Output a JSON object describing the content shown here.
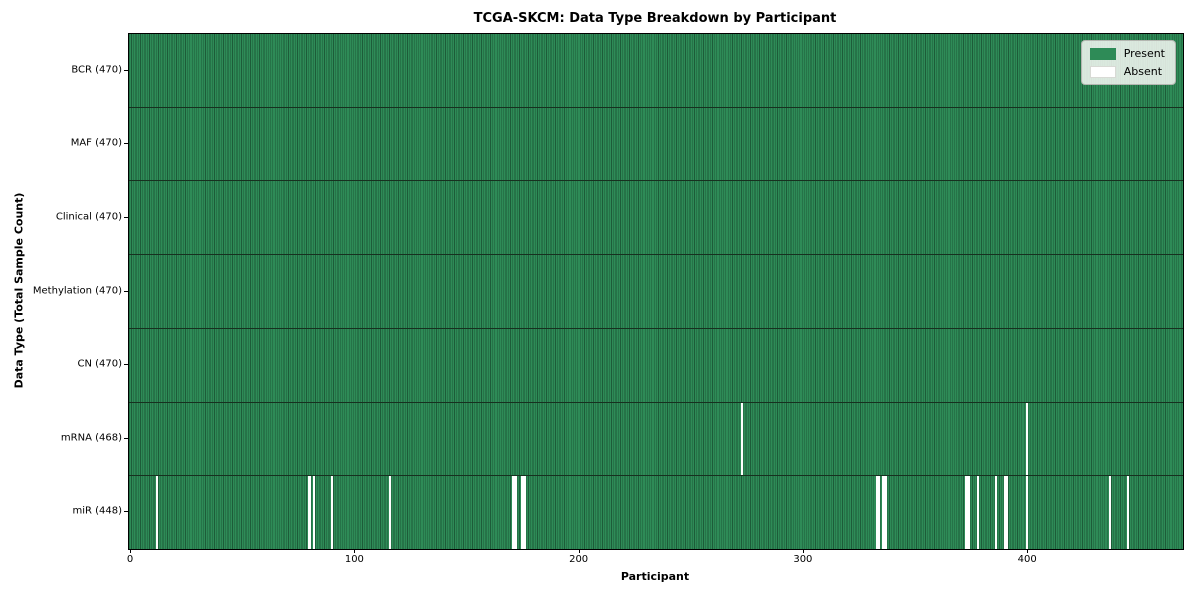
{
  "title": "TCGA-SKCM: Data Type Breakdown by Participant",
  "axes": {
    "xlabel": "Participant",
    "ylabel": "Data Type (Total Sample Count)"
  },
  "legend": {
    "present_label": "Present",
    "absent_label": "Absent"
  },
  "colors": {
    "present": "#2e8b57",
    "absent": "#ffffff",
    "cell_edge": "rgba(8, 34, 20, 0.45)",
    "row_divider": "#17301f",
    "spine": "#000000",
    "legend_bg": "rgba(248, 249, 246, 0.85)"
  },
  "chart_data": {
    "type": "heatmap",
    "title": "TCGA-SKCM: Data Type Breakdown by Participant",
    "xlabel": "Participant",
    "ylabel": "Data Type (Total Sample Count)",
    "n_participants": 470,
    "xlim": [
      -0.5,
      469.5
    ],
    "x_ticks": [
      0,
      100,
      200,
      300,
      400
    ],
    "grid": false,
    "legend_entries": [
      "Present",
      "Absent"
    ],
    "legend_position": "upper right",
    "value_encoding": {
      "present": "green cell",
      "absent": "white cell"
    },
    "rows": [
      {
        "label": "BCR (470)",
        "data_type": "BCR",
        "total_samples": 470,
        "absent_participants": []
      },
      {
        "label": "MAF (470)",
        "data_type": "MAF",
        "total_samples": 470,
        "absent_participants": []
      },
      {
        "label": "Clinical (470)",
        "data_type": "Clinical",
        "total_samples": 470,
        "absent_participants": []
      },
      {
        "label": "Methylation (470)",
        "data_type": "Methylation",
        "total_samples": 470,
        "absent_participants": []
      },
      {
        "label": "CN (470)",
        "data_type": "CN",
        "total_samples": 470,
        "absent_participants": []
      },
      {
        "label": "mRNA (468)",
        "data_type": "mRNA",
        "total_samples": 468,
        "absent_participants": [
          273,
          400
        ]
      },
      {
        "label": "miR (448)",
        "data_type": "miR",
        "total_samples": 448,
        "absent_participants": [
          12,
          80,
          82,
          90,
          116,
          171,
          172,
          175,
          176,
          333,
          334,
          336,
          337,
          373,
          374,
          378,
          386,
          390,
          391,
          400,
          437,
          445
        ]
      }
    ]
  }
}
